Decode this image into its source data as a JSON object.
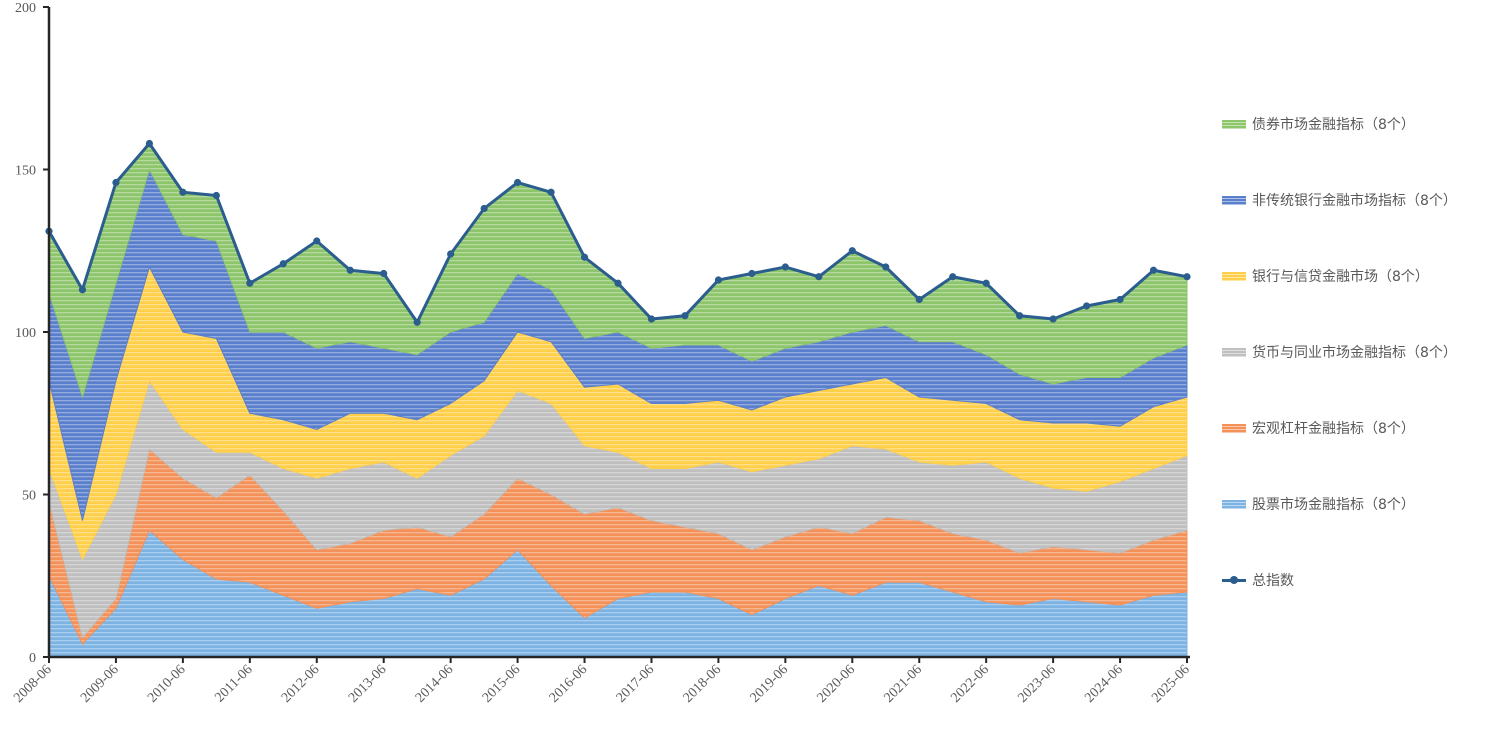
{
  "chart_data": {
    "type": "area",
    "stacked": true,
    "title": "",
    "xlabel": "",
    "ylabel": "",
    "ylim": [
      0,
      200
    ],
    "yticks": [
      0,
      50,
      100,
      150,
      200
    ],
    "x_tick_labels": [
      "2008-06",
      "2009-06",
      "2010-06",
      "2011-06",
      "2012-06",
      "2013-06",
      "2014-06",
      "2015-06",
      "2016-06",
      "2017-06",
      "2018-06",
      "2019-06",
      "2020-06",
      "2021-06",
      "2022-06",
      "2023-06",
      "2024-06",
      "2025-06"
    ],
    "x": [
      "2008-06",
      "2008-12",
      "2009-06",
      "2009-12",
      "2010-06",
      "2010-12",
      "2011-06",
      "2011-12",
      "2012-06",
      "2012-12",
      "2013-06",
      "2013-12",
      "2014-06",
      "2014-12",
      "2015-06",
      "2015-12",
      "2016-06",
      "2016-12",
      "2017-06",
      "2017-12",
      "2018-06",
      "2018-12",
      "2019-06",
      "2019-12",
      "2020-06",
      "2020-12",
      "2021-06",
      "2021-12",
      "2022-06",
      "2022-12",
      "2023-06",
      "2023-12",
      "2024-06",
      "2024-12",
      "2025-06"
    ],
    "series": [
      {
        "name": "股票市场金融指标（8个）",
        "color": "#7db3e3",
        "values": [
          25,
          4,
          15,
          39,
          30,
          24,
          23,
          19,
          15,
          17,
          18,
          21,
          19,
          24,
          33,
          22,
          12,
          18,
          20,
          20,
          18,
          13,
          18,
          22,
          19,
          23,
          23,
          20,
          17,
          16,
          18,
          17,
          16,
          19,
          20
        ]
      },
      {
        "name": "宏观杠杆金融指标（8个）",
        "color": "#f39158",
        "values": [
          23,
          2,
          3,
          25,
          25,
          25,
          33,
          26,
          18,
          18,
          21,
          19,
          18,
          20,
          22,
          28,
          32,
          28,
          22,
          20,
          20,
          20,
          19,
          18,
          19,
          20,
          19,
          18,
          19,
          16,
          16,
          16,
          16,
          17,
          19
        ]
      },
      {
        "name": "货币与同业市场金融指标（8个）",
        "color": "#bfbfbf",
        "values": [
          10,
          24,
          32,
          21,
          15,
          14,
          7,
          13,
          22,
          23,
          21,
          15,
          25,
          24,
          27,
          28,
          21,
          17,
          16,
          18,
          22,
          24,
          22,
          21,
          27,
          21,
          18,
          21,
          24,
          23,
          18,
          18,
          22,
          22,
          23
        ]
      },
      {
        "name": "银行与信贷金融市场（8个）",
        "color": "#ffcf4a",
        "values": [
          27,
          12,
          35,
          35,
          30,
          35,
          12,
          15,
          15,
          17,
          15,
          18,
          16,
          17,
          18,
          19,
          18,
          21,
          20,
          20,
          19,
          19,
          21,
          21,
          19,
          22,
          20,
          20,
          18,
          18,
          20,
          21,
          17,
          19,
          18
        ]
      },
      {
        "name": "非传统银行金融市场指标（8个）",
        "color": "#5a7fcc",
        "values": [
          27,
          38,
          30,
          30,
          30,
          30,
          25,
          27,
          25,
          22,
          20,
          20,
          22,
          18,
          18,
          16,
          15,
          16,
          17,
          18,
          17,
          15,
          15,
          15,
          16,
          16,
          17,
          18,
          15,
          14,
          12,
          14,
          15,
          15,
          16
        ]
      },
      {
        "name": "债券市场金融指标（8个）",
        "color": "#8dc56b",
        "values": [
          19,
          33,
          31,
          8,
          13,
          14,
          15,
          21,
          33,
          22,
          23,
          10,
          24,
          35,
          28,
          30,
          25,
          15,
          9,
          9,
          20,
          27,
          25,
          20,
          25,
          18,
          13,
          20,
          22,
          18,
          20,
          22,
          24,
          27,
          21
        ]
      }
    ],
    "line": {
      "name": "总指数",
      "color": "#2b5d8e",
      "values": [
        131,
        113,
        146,
        158,
        143,
        142,
        115,
        121,
        128,
        119,
        118,
        103,
        124,
        138,
        146,
        143,
        123,
        115,
        104,
        105,
        116,
        118,
        120,
        117,
        125,
        120,
        110,
        117,
        115,
        105,
        104,
        108,
        110,
        119,
        117
      ]
    },
    "legend_position": "right",
    "legend": [
      "债券市场金融指标（8个）",
      "非传统银行金融市场指标（8个）",
      "银行与信贷金融市场（8个）",
      "货币与同业市场金融指标（8个）",
      "宏观杠杆金融指标（8个）",
      "股票市场金融指标（8个）",
      "总指数"
    ],
    "grid": false
  }
}
